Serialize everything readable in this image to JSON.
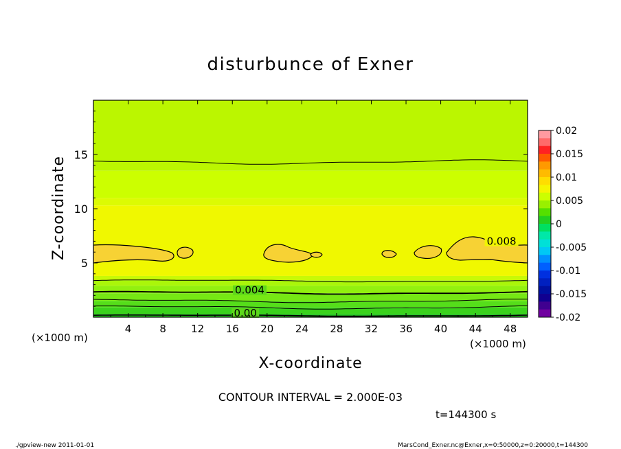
{
  "chart_data": {
    "type": "contour",
    "title": "disturbunce of Exner",
    "xlabel": "X-coordinate",
    "ylabel": "Z-coordinate",
    "x_unit_label": "(×1000 m)",
    "y_unit_label": "(×1000 m)",
    "xlim": [
      0,
      50
    ],
    "ylim": [
      0,
      20
    ],
    "x_ticks": [
      4,
      8,
      12,
      16,
      20,
      24,
      28,
      32,
      36,
      40,
      44,
      48
    ],
    "y_ticks": [
      5,
      10,
      15
    ],
    "contour_interval_text": "CONTOUR INTERVAL = 2.000E-03",
    "time_text": "t=144300 s",
    "contour_labels": [
      {
        "text": "0.008",
        "x": 47.0,
        "z": 6.8
      },
      {
        "text": "0.004",
        "x": 18.0,
        "z": 2.3
      },
      {
        "text": "0.00",
        "x": 17.5,
        "z": 0.2
      }
    ],
    "bands": [
      {
        "z0": 0.0,
        "z1": 0.3,
        "color": "#22c41e"
      },
      {
        "z0": 0.3,
        "z1": 0.9,
        "color": "#3ad21c"
      },
      {
        "z0": 0.9,
        "z1": 1.5,
        "color": "#55de1a"
      },
      {
        "z0": 1.5,
        "z1": 2.2,
        "color": "#76e814"
      },
      {
        "z0": 2.2,
        "z1": 2.9,
        "color": "#92f00f"
      },
      {
        "z0": 2.9,
        "z1": 3.4,
        "color": "#aaf60a"
      },
      {
        "z0": 3.4,
        "z1": 3.8,
        "color": "#c8fa06"
      },
      {
        "z0": 3.8,
        "z1": 10.3,
        "color": "#f0f800"
      },
      {
        "z0": 10.3,
        "z1": 11.0,
        "color": "#dcfb03"
      },
      {
        "z0": 11.0,
        "z1": 13.5,
        "color": "#ccff00"
      },
      {
        "z0": 13.5,
        "z1": 20.0,
        "color": "#bbf600"
      }
    ],
    "colorbar": {
      "tick_labels": [
        "0.02",
        "0.015",
        "0.01",
        "0.005",
        "0",
        "-0.005",
        "-0.01",
        "-0.015",
        "-0.02"
      ],
      "colors": [
        "#ff9aa0",
        "#ff6a6a",
        "#ff2222",
        "#ff5a00",
        "#ff9900",
        "#ffbb00",
        "#ffdd00",
        "#f5f500",
        "#ccff00",
        "#99f000",
        "#55e000",
        "#22d020",
        "#00e060",
        "#00e8a8",
        "#00e0d8",
        "#00c8f5",
        "#0090ff",
        "#0060ff",
        "#0030e0",
        "#0020c0",
        "#0010a0",
        "#100090",
        "#400090",
        "#7000a0"
      ]
    }
  },
  "footer": {
    "left": "./gpview-new   2011-01-01",
    "right": "MarsCond_Exner.nc@Exner,x=0:50000,z=0:20000,t=144300"
  }
}
